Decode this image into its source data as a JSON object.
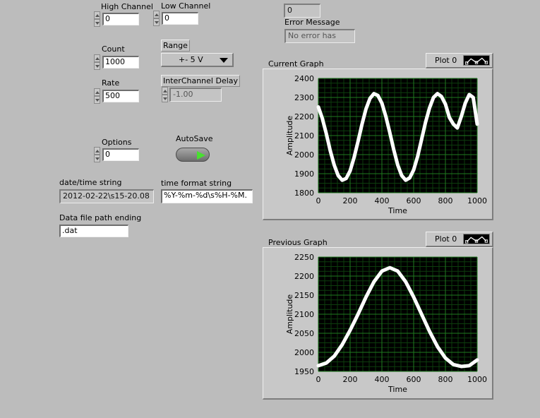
{
  "controls": {
    "high_channel": {
      "label": "High Channel",
      "value": "0"
    },
    "low_channel": {
      "label": "Low Channel",
      "value": "0"
    },
    "count": {
      "label": "Count",
      "value": "1000"
    },
    "rate": {
      "label": "Rate",
      "value": "500"
    },
    "range": {
      "label": "Range",
      "value": "+- 5 V"
    },
    "interchannel_delay": {
      "label": "InterChannel Delay",
      "value": "-1.00"
    },
    "options": {
      "label": "Options",
      "value": "0"
    },
    "autosave": {
      "label": "AutoSave",
      "state": "on"
    },
    "datetime_string": {
      "label": "date/time string",
      "value": "2012-02-22\\s15-20.08"
    },
    "time_format_string": {
      "label": "time format string",
      "value": "%Y-%m-%d\\s%H-%M."
    },
    "data_file_path_ending": {
      "label": "Data file path ending",
      "value": ".dat"
    }
  },
  "error": {
    "code": "0",
    "label": "Error Message",
    "message": "No error has"
  },
  "current_graph": {
    "label": "Current Graph",
    "legend": "Plot 0"
  },
  "previous_graph": {
    "label": "Previous Graph",
    "legend": "Plot 0"
  },
  "colors": {
    "plot_bg": "#000000",
    "grid": "#1f7a1f",
    "trace": "#ffffff",
    "panel": "#bcbcbc",
    "led_on": "#48e030"
  },
  "chart_data": [
    {
      "type": "line",
      "title": "Current Graph",
      "xlabel": "Time",
      "ylabel": "Amplitude",
      "xlim": [
        0,
        1000
      ],
      "ylim": [
        1800,
        2400
      ],
      "xticks": [
        "0",
        "200",
        "400",
        "600",
        "800",
        "1000"
      ],
      "yticks": [
        "1800",
        "1900",
        "2000",
        "2100",
        "2200",
        "2300",
        "2400"
      ],
      "grid": true,
      "series": [
        {
          "name": "Plot 0",
          "x": [
            0,
            25,
            50,
            75,
            100,
            125,
            150,
            175,
            200,
            225,
            250,
            275,
            300,
            325,
            350,
            375,
            400,
            425,
            450,
            475,
            500,
            525,
            550,
            575,
            600,
            625,
            650,
            675,
            700,
            725,
            750,
            775,
            800,
            825,
            850,
            875,
            900,
            925,
            950,
            975,
            1000
          ],
          "y": [
            2250,
            2190,
            2110,
            2020,
            1945,
            1890,
            1866,
            1875,
            1915,
            1985,
            2070,
            2160,
            2240,
            2295,
            2320,
            2310,
            2270,
            2200,
            2115,
            2025,
            1945,
            1890,
            1866,
            1878,
            1920,
            1990,
            2080,
            2170,
            2245,
            2300,
            2320,
            2305,
            2265,
            2195,
            2160,
            2140,
            2200,
            2270,
            2315,
            2300,
            2160
          ]
        }
      ]
    },
    {
      "type": "line",
      "title": "Previous Graph",
      "xlabel": "Time",
      "ylabel": "Amplitude",
      "xlim": [
        0,
        1000
      ],
      "ylim": [
        1950,
        2250
      ],
      "xticks": [
        "0",
        "200",
        "400",
        "600",
        "800",
        "1000"
      ],
      "yticks": [
        "1950",
        "2000",
        "2050",
        "2100",
        "2150",
        "2200",
        "2250"
      ],
      "grid": true,
      "series": [
        {
          "name": "Plot 0",
          "x": [
            0,
            50,
            100,
            150,
            200,
            250,
            300,
            350,
            400,
            450,
            500,
            550,
            600,
            650,
            700,
            750,
            800,
            850,
            900,
            950,
            1000
          ],
          "y": [
            1965,
            1972,
            1990,
            2020,
            2058,
            2100,
            2145,
            2185,
            2213,
            2222,
            2213,
            2185,
            2145,
            2100,
            2055,
            2015,
            1985,
            1968,
            1963,
            1965,
            1980
          ]
        }
      ]
    }
  ]
}
